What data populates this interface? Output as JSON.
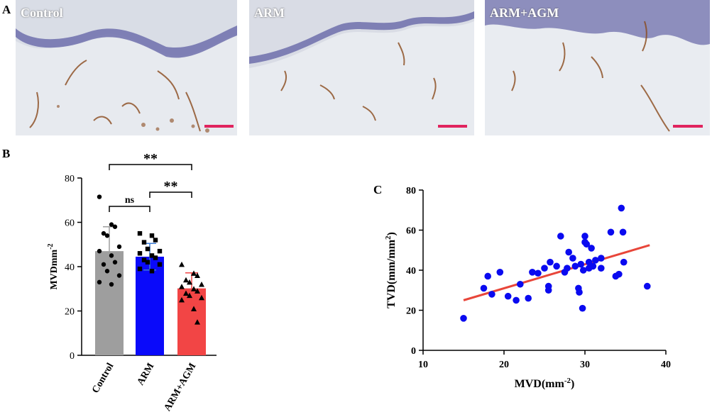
{
  "panel_a": {
    "letter": "A",
    "images": [
      {
        "label": "Control"
      },
      {
        "label": "ARM"
      },
      {
        "label": "ARM+AGM"
      }
    ],
    "scale_bar_color": "#e0245e",
    "tissue_color": "#e6e9ee",
    "epidermis_color": "#6a6aa6",
    "vessel_color": "#8a4a1c"
  },
  "chart_data": [
    {
      "type": "bar",
      "panel": "B",
      "categories": [
        "Control",
        "ARM",
        "ARM+AGM"
      ],
      "colors": [
        "#9e9e9e",
        "#0a0afa",
        "#f24545"
      ],
      "errorbar_colors": [
        "#9e9e9e",
        "#3a7bd5",
        "#f24545"
      ],
      "markers": [
        "circle",
        "square",
        "triangle"
      ],
      "values": [
        47,
        44.5,
        30.2
      ],
      "sd": [
        11,
        6,
        7
      ],
      "points": [
        [
          71.5,
          59,
          58,
          55,
          54,
          49,
          47,
          45,
          42,
          41,
          38,
          36,
          33,
          32
        ],
        [
          55,
          54,
          52,
          51,
          48,
          47,
          46,
          45,
          44,
          43,
          42,
          41,
          39,
          38
        ],
        [
          41,
          37,
          36,
          34,
          33,
          32,
          31,
          30,
          29,
          28,
          27,
          26,
          25,
          21,
          15
        ]
      ],
      "ylabel": "MVDmm-2",
      "ylabel_main": "MVDmm",
      "ylabel_sup": "-2",
      "ylim": [
        0,
        80
      ],
      "yticks": [
        0,
        20,
        40,
        60,
        80
      ],
      "significance": [
        {
          "from": 0,
          "to": 1,
          "label": "ns"
        },
        {
          "from": 1,
          "to": 2,
          "label": "**"
        },
        {
          "from": 0,
          "to": 2,
          "label": "**"
        }
      ]
    },
    {
      "type": "scatter",
      "panel": "C",
      "xlabel": "MVD(mm-2)",
      "xlabel_main": "MVD(mm",
      "xlabel_sup": "-2",
      "xlabel_end": ")",
      "ylabel": "TVD(mm/mm2)",
      "ylabel_main": "TVD(mm/mm",
      "ylabel_sup": "2",
      "ylabel_end": ")",
      "xlim": [
        10,
        40
      ],
      "ylim": [
        0,
        80
      ],
      "xticks": [
        10,
        20,
        30,
        40
      ],
      "yticks": [
        0,
        20,
        40,
        60,
        80
      ],
      "point_color": "#0a0af0",
      "line_color": "#e8463a",
      "fit_line": {
        "x": [
          15,
          38
        ],
        "y": [
          25,
          52.5
        ]
      },
      "points": [
        {
          "x": 15,
          "y": 16
        },
        {
          "x": 17.5,
          "y": 31
        },
        {
          "x": 18,
          "y": 37
        },
        {
          "x": 18.5,
          "y": 28
        },
        {
          "x": 19.5,
          "y": 39
        },
        {
          "x": 20.5,
          "y": 27
        },
        {
          "x": 21.5,
          "y": 25
        },
        {
          "x": 22,
          "y": 33
        },
        {
          "x": 23,
          "y": 26
        },
        {
          "x": 23.5,
          "y": 39
        },
        {
          "x": 24.2,
          "y": 38.5
        },
        {
          "x": 25,
          "y": 41
        },
        {
          "x": 25.5,
          "y": 32
        },
        {
          "x": 25.5,
          "y": 30
        },
        {
          "x": 25.7,
          "y": 44
        },
        {
          "x": 26.5,
          "y": 42
        },
        {
          "x": 27,
          "y": 57
        },
        {
          "x": 27.5,
          "y": 39
        },
        {
          "x": 27.8,
          "y": 41
        },
        {
          "x": 28,
          "y": 49
        },
        {
          "x": 28.5,
          "y": 46
        },
        {
          "x": 28.8,
          "y": 42
        },
        {
          "x": 29.2,
          "y": 31
        },
        {
          "x": 29.3,
          "y": 29
        },
        {
          "x": 29.5,
          "y": 43
        },
        {
          "x": 29.7,
          "y": 21
        },
        {
          "x": 29.8,
          "y": 40
        },
        {
          "x": 30,
          "y": 54
        },
        {
          "x": 30,
          "y": 57
        },
        {
          "x": 30.2,
          "y": 53
        },
        {
          "x": 30.5,
          "y": 41
        },
        {
          "x": 30.5,
          "y": 44
        },
        {
          "x": 30.8,
          "y": 51
        },
        {
          "x": 31,
          "y": 42
        },
        {
          "x": 31.3,
          "y": 45
        },
        {
          "x": 32,
          "y": 41
        },
        {
          "x": 32,
          "y": 46
        },
        {
          "x": 33.2,
          "y": 59
        },
        {
          "x": 33.8,
          "y": 37
        },
        {
          "x": 34.2,
          "y": 38
        },
        {
          "x": 34.5,
          "y": 71
        },
        {
          "x": 34.7,
          "y": 59
        },
        {
          "x": 34.8,
          "y": 44
        },
        {
          "x": 37.7,
          "y": 32
        }
      ]
    }
  ]
}
